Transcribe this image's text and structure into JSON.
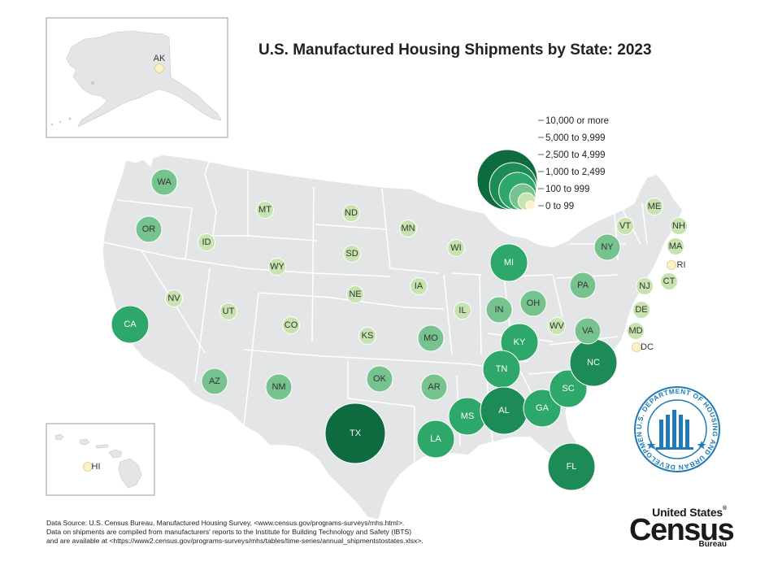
{
  "title": "U.S. Manufactured Housing Shipments by State: 2023",
  "colors": {
    "land": "#e4e5e6",
    "border": "#ffffff",
    "inset_frame": "#9a9a9a",
    "hud_blue": "#1f7bb8"
  },
  "legend": {
    "items": [
      {
        "label": "10,000 or more",
        "color": "#0d6b3f"
      },
      {
        "label": "5,000 to 9,999",
        "color": "#1c8b55"
      },
      {
        "label": "2,500 to 4,999",
        "color": "#2ea76a"
      },
      {
        "label": "1,000 to 2,499",
        "color": "#76c38f"
      },
      {
        "label": "100 to 999",
        "color": "#c6e3b0"
      },
      {
        "label": "0 to 99",
        "color": "#fbf3c8"
      }
    ]
  },
  "states": [
    {
      "abbr": "AK",
      "class": 5
    },
    {
      "abbr": "HI",
      "class": 5
    },
    {
      "abbr": "WA",
      "class": 3
    },
    {
      "abbr": "OR",
      "class": 3
    },
    {
      "abbr": "CA",
      "class": 2
    },
    {
      "abbr": "ID",
      "class": 4
    },
    {
      "abbr": "NV",
      "class": 4
    },
    {
      "abbr": "MT",
      "class": 4
    },
    {
      "abbr": "WY",
      "class": 4
    },
    {
      "abbr": "UT",
      "class": 4
    },
    {
      "abbr": "AZ",
      "class": 3
    },
    {
      "abbr": "CO",
      "class": 4
    },
    {
      "abbr": "NM",
      "class": 3
    },
    {
      "abbr": "ND",
      "class": 4
    },
    {
      "abbr": "SD",
      "class": 4
    },
    {
      "abbr": "NE",
      "class": 4
    },
    {
      "abbr": "KS",
      "class": 4
    },
    {
      "abbr": "OK",
      "class": 3
    },
    {
      "abbr": "TX",
      "class": 0
    },
    {
      "abbr": "MN",
      "class": 4
    },
    {
      "abbr": "IA",
      "class": 4
    },
    {
      "abbr": "MO",
      "class": 3
    },
    {
      "abbr": "AR",
      "class": 3
    },
    {
      "abbr": "LA",
      "class": 2
    },
    {
      "abbr": "WI",
      "class": 4
    },
    {
      "abbr": "IL",
      "class": 4
    },
    {
      "abbr": "MI",
      "class": 2
    },
    {
      "abbr": "IN",
      "class": 3
    },
    {
      "abbr": "OH",
      "class": 3
    },
    {
      "abbr": "KY",
      "class": 2
    },
    {
      "abbr": "TN",
      "class": 2
    },
    {
      "abbr": "MS",
      "class": 2
    },
    {
      "abbr": "AL",
      "class": 1
    },
    {
      "abbr": "GA",
      "class": 2
    },
    {
      "abbr": "FL",
      "class": 1
    },
    {
      "abbr": "SC",
      "class": 2
    },
    {
      "abbr": "NC",
      "class": 1
    },
    {
      "abbr": "VA",
      "class": 3
    },
    {
      "abbr": "WV",
      "class": 4
    },
    {
      "abbr": "PA",
      "class": 3
    },
    {
      "abbr": "NY",
      "class": 3
    },
    {
      "abbr": "VT",
      "class": 4
    },
    {
      "abbr": "NH",
      "class": 4
    },
    {
      "abbr": "ME",
      "class": 4
    },
    {
      "abbr": "MA",
      "class": 4
    },
    {
      "abbr": "RI",
      "class": 5
    },
    {
      "abbr": "CT",
      "class": 4
    },
    {
      "abbr": "NJ",
      "class": 4
    },
    {
      "abbr": "DE",
      "class": 4
    },
    {
      "abbr": "MD",
      "class": 4
    },
    {
      "abbr": "DC",
      "class": 5
    }
  ],
  "source": {
    "line1": "Data Source: U.S. Census Bureau, Manufactured Housing Survey, <www.census.gov/programs-surveys/mhs.html>.",
    "line2": "Data on shipments are compiled from manufacturers' reports to the Institute for Building Technology and Safety (IBTS)",
    "line3": "and are available at <https://www2.census.gov/programs-surveys/mhs/tables/time-series/annual_shipmentstostates.xlsx>."
  },
  "hud_logo": {
    "text": "U.S. DEPARTMENT OF HOUSING AND URBAN DEVELOPMENT"
  },
  "census_logo": {
    "line1": "United States",
    "line2": "Census",
    "line3": "Bureau",
    "mark": "®"
  }
}
